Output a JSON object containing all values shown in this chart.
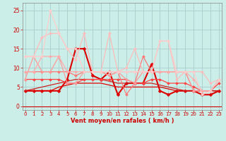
{
  "bg_color": "#cceee8",
  "grid_color": "#aacccc",
  "x_label": "Vent moyen/en rafales ( km/h )",
  "x_ticks": [
    0,
    1,
    2,
    3,
    4,
    5,
    6,
    7,
    8,
    9,
    10,
    11,
    12,
    13,
    14,
    15,
    16,
    17,
    18,
    19,
    20,
    21,
    22,
    23
  ],
  "y_ticks": [
    0,
    5,
    10,
    15,
    20,
    25
  ],
  "ylim": [
    -1,
    27
  ],
  "xlim": [
    -0.3,
    23.3
  ],
  "arrows": [
    "↙",
    "←",
    "↙",
    "↙",
    "↘",
    "↓",
    "↘",
    "↘",
    "↓",
    "↓",
    "→",
    "↓",
    "↘",
    "↓",
    "↓",
    "↓",
    "↑",
    "↗",
    "←",
    "←",
    "←",
    "←",
    "←",
    "←"
  ],
  "series": [
    {
      "color": "#dd0000",
      "lw": 1.5,
      "marker": "D",
      "ms": 2.5,
      "y": [
        4,
        4,
        4,
        4,
        4,
        7,
        15,
        15,
        8,
        7,
        9,
        3,
        6,
        6,
        6,
        11,
        4,
        3,
        4,
        4,
        4,
        3,
        3,
        4
      ]
    },
    {
      "color": "#dd0000",
      "lw": 0.9,
      "marker": null,
      "ms": 0,
      "y": [
        4,
        4,
        4,
        4,
        5,
        5.5,
        6,
        6,
        6,
        6,
        5.5,
        5,
        5,
        5,
        5,
        5,
        5,
        4.5,
        4,
        4,
        4,
        4,
        4,
        4
      ]
    },
    {
      "color": "#cc2222",
      "lw": 0.9,
      "marker": null,
      "ms": 0,
      "y": [
        4,
        4.5,
        5,
        5.5,
        6,
        6.5,
        7,
        7,
        7,
        7,
        6.5,
        6,
        6,
        6,
        6,
        6,
        5.5,
        5,
        4.5,
        4,
        4,
        4,
        4,
        4
      ]
    },
    {
      "color": "#ff4444",
      "lw": 0.9,
      "marker": "D",
      "ms": 2,
      "y": [
        7,
        7,
        7,
        7,
        7,
        6,
        6,
        7,
        7,
        7,
        7,
        7,
        7,
        6,
        6,
        7,
        7,
        6,
        6,
        6,
        5,
        4,
        4,
        6
      ]
    },
    {
      "color": "#ff7777",
      "lw": 0.9,
      "marker": "D",
      "ms": 2,
      "y": [
        9,
        9,
        9,
        9,
        9,
        9,
        8,
        9,
        9,
        9,
        8,
        9,
        3,
        6,
        13,
        9,
        9,
        9,
        9,
        9,
        4,
        4,
        4,
        7
      ]
    },
    {
      "color": "#ff9999",
      "lw": 0.9,
      "marker": "D",
      "ms": 2,
      "y": [
        7,
        13,
        9,
        9,
        13,
        6,
        6,
        9,
        9,
        9,
        8,
        9,
        7,
        6,
        9,
        9,
        9,
        9,
        9,
        9,
        4,
        4,
        4,
        7
      ]
    },
    {
      "color": "#ffaaaa",
      "lw": 0.9,
      "marker": "D",
      "ms": 2,
      "y": [
        9,
        9,
        13,
        13,
        13,
        9,
        9,
        9,
        9,
        9,
        9,
        9,
        9,
        9,
        9,
        9,
        9,
        9,
        9,
        9,
        7,
        4,
        4,
        7
      ]
    },
    {
      "color": "#ffbbbb",
      "lw": 0.9,
      "marker": "D",
      "ms": 2,
      "y": [
        13,
        13,
        18,
        19,
        19,
        15,
        12,
        19,
        9,
        9,
        19,
        9,
        10,
        15,
        9,
        9,
        17,
        17,
        7,
        9,
        9,
        9,
        6,
        7
      ]
    },
    {
      "color": "#ffcccc",
      "lw": 0.9,
      "marker": "D",
      "ms": 2,
      "y": [
        13,
        13,
        13,
        25,
        19,
        15,
        15,
        9,
        9,
        9,
        9,
        9,
        9,
        9,
        9,
        9,
        17,
        17,
        9,
        9,
        9,
        3,
        4,
        7
      ]
    }
  ]
}
